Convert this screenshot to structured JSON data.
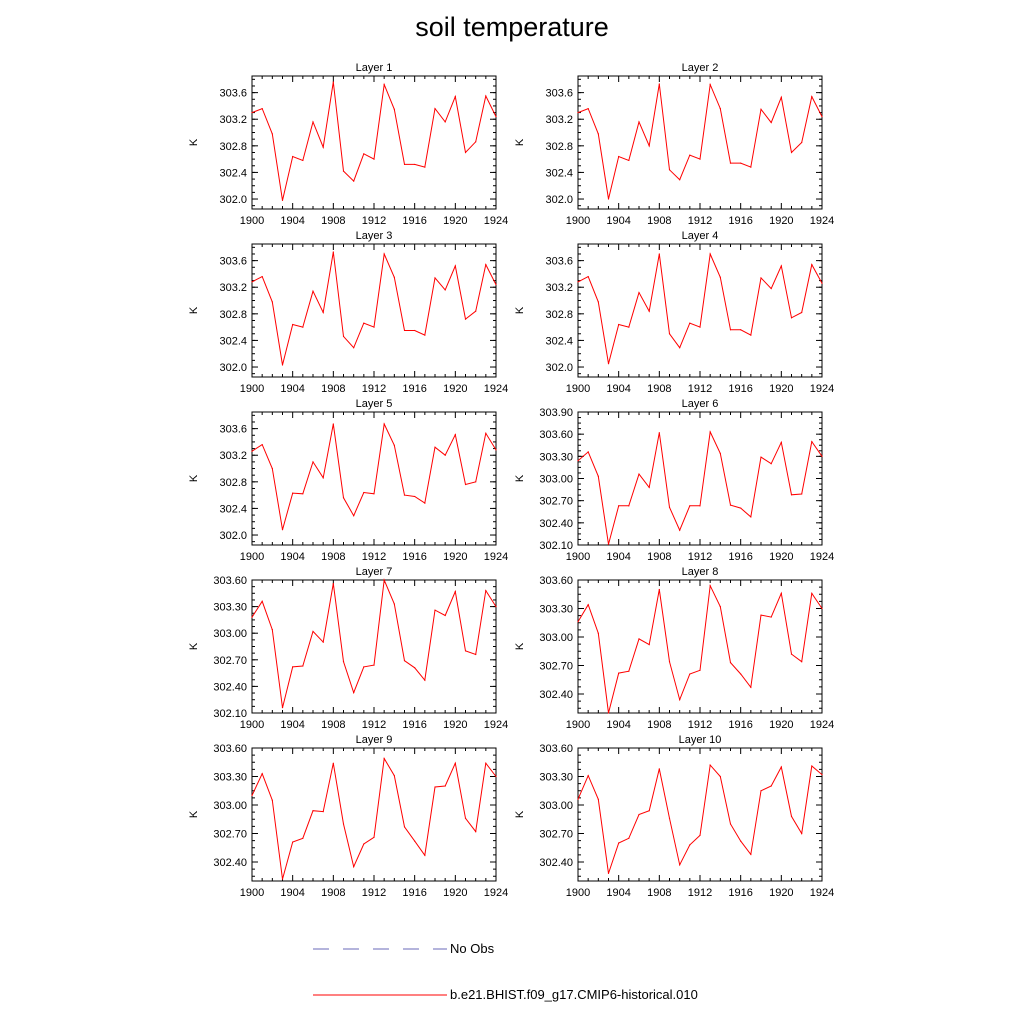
{
  "title": "soil temperature",
  "legend": [
    {
      "label": "No Obs",
      "color": "#6a6ab8",
      "dash": "dashed"
    },
    {
      "label": "b.e21.BHIST.f09_g17.CMIP6-historical.010",
      "color": "#ff0000",
      "dash": "solid"
    }
  ],
  "chart_data": [
    {
      "type": "line",
      "title": "Layer 1",
      "ylabel": "K",
      "xlim": [
        1900,
        1924
      ],
      "ylim": [
        301.85,
        303.85
      ],
      "xticks": [
        "1900",
        "1904",
        "1908",
        "1912",
        "1916",
        "1920",
        "1924"
      ],
      "yticks": [
        "302.0",
        "302.4",
        "302.8",
        "303.2",
        "303.6"
      ],
      "x": [
        1900,
        1901,
        1902,
        1903,
        1904,
        1905,
        1906,
        1907,
        1908,
        1909,
        1910,
        1911,
        1912,
        1913,
        1914,
        1915,
        1916,
        1917,
        1918,
        1919,
        1920,
        1921,
        1922,
        1923,
        1924
      ],
      "series": [
        {
          "name": "b.e21.BHIST.f09_g17.CMIP6-historical.010",
          "color": "#ff0000",
          "values": [
            303.3,
            303.36,
            302.98,
            301.98,
            302.64,
            302.58,
            303.16,
            302.78,
            303.76,
            302.42,
            302.27,
            302.68,
            302.6,
            303.72,
            303.35,
            302.52,
            302.52,
            302.48,
            303.36,
            303.16,
            303.54,
            302.7,
            302.86,
            303.55,
            303.24
          ]
        }
      ]
    },
    {
      "type": "line",
      "title": "Layer 2",
      "ylabel": "K",
      "xlim": [
        1900,
        1924
      ],
      "ylim": [
        301.85,
        303.85
      ],
      "xticks": [
        "1900",
        "1904",
        "1908",
        "1912",
        "1916",
        "1920",
        "1924"
      ],
      "yticks": [
        "302.0",
        "302.4",
        "302.8",
        "303.2",
        "303.6"
      ],
      "x": [
        1900,
        1901,
        1902,
        1903,
        1904,
        1905,
        1906,
        1907,
        1908,
        1909,
        1910,
        1911,
        1912,
        1913,
        1914,
        1915,
        1916,
        1917,
        1918,
        1919,
        1920,
        1921,
        1922,
        1923,
        1924
      ],
      "series": [
        {
          "name": "b.e21.BHIST.f09_g17.CMIP6-historical.010",
          "color": "#ff0000",
          "values": [
            303.3,
            303.36,
            302.98,
            302.0,
            302.64,
            302.58,
            303.16,
            302.8,
            303.73,
            302.44,
            302.29,
            302.66,
            302.6,
            303.72,
            303.36,
            302.54,
            302.54,
            302.48,
            303.35,
            303.15,
            303.53,
            302.7,
            302.85,
            303.54,
            303.24
          ]
        }
      ]
    },
    {
      "type": "line",
      "title": "Layer 3",
      "ylabel": "K",
      "xlim": [
        1900,
        1924
      ],
      "ylim": [
        301.85,
        303.85
      ],
      "xticks": [
        "1900",
        "1904",
        "1908",
        "1912",
        "1916",
        "1920",
        "1924"
      ],
      "yticks": [
        "302.0",
        "302.4",
        "302.8",
        "303.2",
        "303.6"
      ],
      "x": [
        1900,
        1901,
        1902,
        1903,
        1904,
        1905,
        1906,
        1907,
        1908,
        1909,
        1910,
        1911,
        1912,
        1913,
        1914,
        1915,
        1916,
        1917,
        1918,
        1919,
        1920,
        1921,
        1922,
        1923,
        1924
      ],
      "series": [
        {
          "name": "b.e21.BHIST.f09_g17.CMIP6-historical.010",
          "color": "#ff0000",
          "values": [
            303.28,
            303.36,
            302.98,
            302.03,
            302.64,
            302.6,
            303.14,
            302.82,
            303.73,
            302.46,
            302.29,
            302.66,
            302.6,
            303.7,
            303.35,
            302.55,
            302.55,
            302.48,
            303.34,
            303.16,
            303.52,
            302.72,
            302.84,
            303.54,
            303.24
          ]
        }
      ]
    },
    {
      "type": "line",
      "title": "Layer 4",
      "ylabel": "K",
      "xlim": [
        1900,
        1924
      ],
      "ylim": [
        301.85,
        303.85
      ],
      "xticks": [
        "1900",
        "1904",
        "1908",
        "1912",
        "1916",
        "1920",
        "1924"
      ],
      "yticks": [
        "302.0",
        "302.4",
        "302.8",
        "303.2",
        "303.6"
      ],
      "x": [
        1900,
        1901,
        1902,
        1903,
        1904,
        1905,
        1906,
        1907,
        1908,
        1909,
        1910,
        1911,
        1912,
        1913,
        1914,
        1915,
        1916,
        1917,
        1918,
        1919,
        1920,
        1921,
        1922,
        1923,
        1924
      ],
      "series": [
        {
          "name": "b.e21.BHIST.f09_g17.CMIP6-historical.010",
          "color": "#ff0000",
          "values": [
            303.28,
            303.36,
            302.98,
            302.05,
            302.64,
            302.6,
            303.12,
            302.84,
            303.7,
            302.5,
            302.29,
            302.66,
            302.6,
            303.7,
            303.35,
            302.56,
            302.56,
            302.48,
            303.34,
            303.18,
            303.52,
            302.74,
            302.82,
            303.54,
            303.26
          ]
        }
      ]
    },
    {
      "type": "line",
      "title": "Layer 5",
      "ylabel": "K",
      "xlim": [
        1900,
        1924
      ],
      "ylim": [
        301.85,
        303.85
      ],
      "xticks": [
        "1900",
        "1904",
        "1908",
        "1912",
        "1916",
        "1920",
        "1924"
      ],
      "yticks": [
        "302.0",
        "302.4",
        "302.8",
        "303.2",
        "303.6"
      ],
      "x": [
        1900,
        1901,
        1902,
        1903,
        1904,
        1905,
        1906,
        1907,
        1908,
        1909,
        1910,
        1911,
        1912,
        1913,
        1914,
        1915,
        1916,
        1917,
        1918,
        1919,
        1920,
        1921,
        1922,
        1923,
        1924
      ],
      "series": [
        {
          "name": "b.e21.BHIST.f09_g17.CMIP6-historical.010",
          "color": "#ff0000",
          "values": [
            303.26,
            303.36,
            303.0,
            302.08,
            302.63,
            302.62,
            303.1,
            302.86,
            303.67,
            302.56,
            302.29,
            302.64,
            302.62,
            303.67,
            303.35,
            302.6,
            302.58,
            302.48,
            303.32,
            303.2,
            303.51,
            302.76,
            302.8,
            303.53,
            303.28
          ]
        }
      ]
    },
    {
      "type": "line",
      "title": "Layer 6",
      "ylabel": "K",
      "xlim": [
        1900,
        1924
      ],
      "ylim": [
        302.1,
        303.9
      ],
      "xticks": [
        "1900",
        "1904",
        "1908",
        "1912",
        "1916",
        "1920",
        "1924"
      ],
      "yticks": [
        "302.10",
        "302.40",
        "302.70",
        "303.00",
        "303.30",
        "303.60",
        "303.90"
      ],
      "x": [
        1900,
        1901,
        1902,
        1903,
        1904,
        1905,
        1906,
        1907,
        1908,
        1909,
        1910,
        1911,
        1912,
        1913,
        1914,
        1915,
        1916,
        1917,
        1918,
        1919,
        1920,
        1921,
        1922,
        1923,
        1924
      ],
      "series": [
        {
          "name": "b.e21.BHIST.f09_g17.CMIP6-historical.010",
          "color": "#ff0000",
          "values": [
            303.24,
            303.36,
            303.03,
            302.11,
            302.63,
            302.63,
            303.06,
            302.88,
            303.62,
            302.61,
            302.3,
            302.63,
            302.63,
            303.63,
            303.34,
            302.64,
            302.6,
            302.48,
            303.29,
            303.2,
            303.49,
            302.78,
            302.79,
            303.5,
            303.3
          ]
        }
      ]
    },
    {
      "type": "line",
      "title": "Layer 7",
      "ylabel": "K",
      "xlim": [
        1900,
        1924
      ],
      "ylim": [
        302.1,
        303.6
      ],
      "xticks": [
        "1900",
        "1904",
        "1908",
        "1912",
        "1916",
        "1920",
        "1924"
      ],
      "yticks": [
        "302.10",
        "302.40",
        "302.70",
        "303.00",
        "303.30",
        "303.60"
      ],
      "x": [
        1900,
        1901,
        1902,
        1903,
        1904,
        1905,
        1906,
        1907,
        1908,
        1909,
        1910,
        1911,
        1912,
        1913,
        1914,
        1915,
        1916,
        1917,
        1918,
        1919,
        1920,
        1921,
        1922,
        1923,
        1924
      ],
      "series": [
        {
          "name": "b.e21.BHIST.f09_g17.CMIP6-historical.010",
          "color": "#ff0000",
          "values": [
            303.18,
            303.36,
            303.04,
            302.16,
            302.62,
            302.63,
            303.02,
            302.9,
            303.56,
            302.68,
            302.33,
            302.62,
            302.64,
            303.6,
            303.33,
            302.69,
            302.61,
            302.47,
            303.26,
            303.2,
            303.47,
            302.8,
            302.76,
            303.48,
            303.3
          ]
        }
      ]
    },
    {
      "type": "line",
      "title": "Layer 8",
      "ylabel": "K",
      "xlim": [
        1900,
        1924
      ],
      "ylim": [
        302.2,
        303.6
      ],
      "xticks": [
        "1900",
        "1904",
        "1908",
        "1912",
        "1916",
        "1920",
        "1924"
      ],
      "yticks": [
        "302.40",
        "302.70",
        "303.00",
        "303.30",
        "303.60"
      ],
      "x": [
        1900,
        1901,
        1902,
        1903,
        1904,
        1905,
        1906,
        1907,
        1908,
        1909,
        1910,
        1911,
        1912,
        1913,
        1914,
        1915,
        1916,
        1917,
        1918,
        1919,
        1920,
        1921,
        1922,
        1923,
        1924
      ],
      "series": [
        {
          "name": "b.e21.BHIST.f09_g17.CMIP6-historical.010",
          "color": "#ff0000",
          "values": [
            303.16,
            303.34,
            303.04,
            302.2,
            302.62,
            302.64,
            302.98,
            302.92,
            303.5,
            302.74,
            302.34,
            302.61,
            302.65,
            303.54,
            303.32,
            302.73,
            302.61,
            302.47,
            303.23,
            303.21,
            303.46,
            302.82,
            302.74,
            303.46,
            303.3
          ]
        }
      ]
    },
    {
      "type": "line",
      "title": "Layer 9",
      "ylabel": "K",
      "xlim": [
        1900,
        1924
      ],
      "ylim": [
        302.2,
        303.6
      ],
      "xticks": [
        "1900",
        "1904",
        "1908",
        "1912",
        "1916",
        "1920",
        "1924"
      ],
      "yticks": [
        "302.40",
        "302.70",
        "303.00",
        "303.30",
        "303.60"
      ],
      "x": [
        1900,
        1901,
        1902,
        1903,
        1904,
        1905,
        1906,
        1907,
        1908,
        1909,
        1910,
        1911,
        1912,
        1913,
        1914,
        1915,
        1916,
        1917,
        1918,
        1919,
        1920,
        1921,
        1922,
        1923,
        1924
      ],
      "series": [
        {
          "name": "b.e21.BHIST.f09_g17.CMIP6-historical.010",
          "color": "#ff0000",
          "values": [
            303.1,
            303.33,
            303.05,
            302.22,
            302.61,
            302.65,
            302.94,
            302.93,
            303.44,
            302.8,
            302.35,
            302.59,
            302.66,
            303.49,
            303.31,
            302.77,
            302.62,
            302.47,
            303.19,
            303.2,
            303.44,
            302.86,
            302.72,
            303.44,
            303.3
          ]
        }
      ]
    },
    {
      "type": "line",
      "title": "Layer 10",
      "ylabel": "K",
      "xlim": [
        1900,
        1924
      ],
      "ylim": [
        302.2,
        303.6
      ],
      "xticks": [
        "1900",
        "1904",
        "1908",
        "1912",
        "1916",
        "1920",
        "1924"
      ],
      "yticks": [
        "302.40",
        "302.70",
        "303.00",
        "303.30",
        "303.60"
      ],
      "x": [
        1900,
        1901,
        1902,
        1903,
        1904,
        1905,
        1906,
        1907,
        1908,
        1909,
        1910,
        1911,
        1912,
        1913,
        1914,
        1915,
        1916,
        1917,
        1918,
        1919,
        1920,
        1921,
        1922,
        1923,
        1924
      ],
      "series": [
        {
          "name": "b.e21.BHIST.f09_g17.CMIP6-historical.010",
          "color": "#ff0000",
          "values": [
            303.06,
            303.31,
            303.06,
            302.28,
            302.6,
            302.65,
            302.9,
            302.94,
            303.38,
            302.86,
            302.37,
            302.58,
            302.68,
            303.42,
            303.3,
            302.8,
            302.62,
            302.48,
            303.15,
            303.2,
            303.4,
            302.88,
            302.7,
            303.41,
            303.32
          ]
        }
      ]
    }
  ]
}
